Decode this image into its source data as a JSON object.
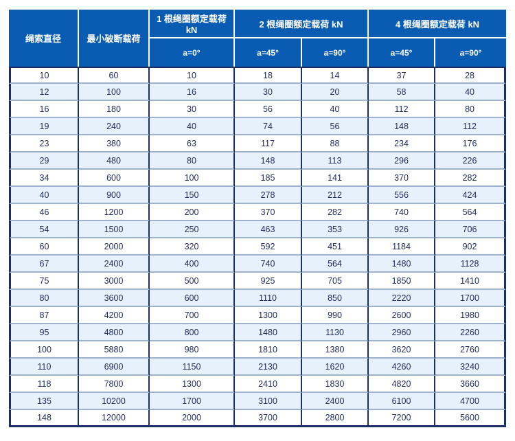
{
  "table": {
    "title_semantic": "rope-sling-rated-load-table",
    "header": {
      "col_rope_diameter": "绳索直径",
      "col_min_breaking_load": "最小破断载荷",
      "group_1_leg": "1 根绳圈额定载荷 kN",
      "group_2_leg": "2 根绳圈额定载荷 kN",
      "group_4_leg": "4 根绳圈额定载荷 kN",
      "sub_a0": "a=0°",
      "sub_a45": "a=45°",
      "sub_a90": "a=90°"
    },
    "columns": [
      "绳索直径",
      "最小破断载荷",
      "1根 a=0°",
      "2根 a=45°",
      "2根 a=90°",
      "4根 a=45°",
      "4根 a=90°"
    ],
    "rows": [
      [
        10,
        60,
        10,
        18,
        14,
        37,
        28
      ],
      [
        12,
        100,
        16,
        30,
        20,
        58,
        40
      ],
      [
        16,
        180,
        30,
        56,
        40,
        112,
        80
      ],
      [
        19,
        240,
        40,
        74,
        56,
        148,
        112
      ],
      [
        23,
        380,
        63,
        117,
        88,
        234,
        176
      ],
      [
        29,
        480,
        80,
        148,
        113,
        296,
        226
      ],
      [
        34,
        600,
        100,
        185,
        141,
        370,
        282
      ],
      [
        40,
        900,
        150,
        278,
        212,
        556,
        424
      ],
      [
        46,
        1200,
        200,
        370,
        282,
        740,
        564
      ],
      [
        54,
        1500,
        250,
        463,
        353,
        926,
        706
      ],
      [
        60,
        2000,
        320,
        592,
        451,
        1184,
        902
      ],
      [
        67,
        2400,
        400,
        740,
        564,
        1480,
        1128
      ],
      [
        75,
        3000,
        500,
        925,
        705,
        1850,
        1410
      ],
      [
        80,
        3600,
        600,
        1110,
        850,
        2220,
        1700
      ],
      [
        87,
        4200,
        700,
        1300,
        990,
        2600,
        1980
      ],
      [
        95,
        4800,
        800,
        1480,
        1130,
        2960,
        2260
      ],
      [
        100,
        5880,
        980,
        1810,
        1380,
        3620,
        2760
      ],
      [
        110,
        6900,
        1150,
        2130,
        1620,
        4260,
        3240
      ],
      [
        118,
        7800,
        1300,
        2410,
        1830,
        4820,
        3660
      ],
      [
        135,
        10200,
        1700,
        3100,
        2400,
        6100,
        4700
      ],
      [
        148,
        12000,
        2000,
        3700,
        2800,
        7200,
        5600
      ]
    ]
  },
  "colors": {
    "header_bg": "#0a5cb3",
    "border_dark": "#1b2f66",
    "row_alt_bg": "#e7f1fb",
    "row_separator": "#9cb2cd",
    "body_text": "#222d5c"
  }
}
